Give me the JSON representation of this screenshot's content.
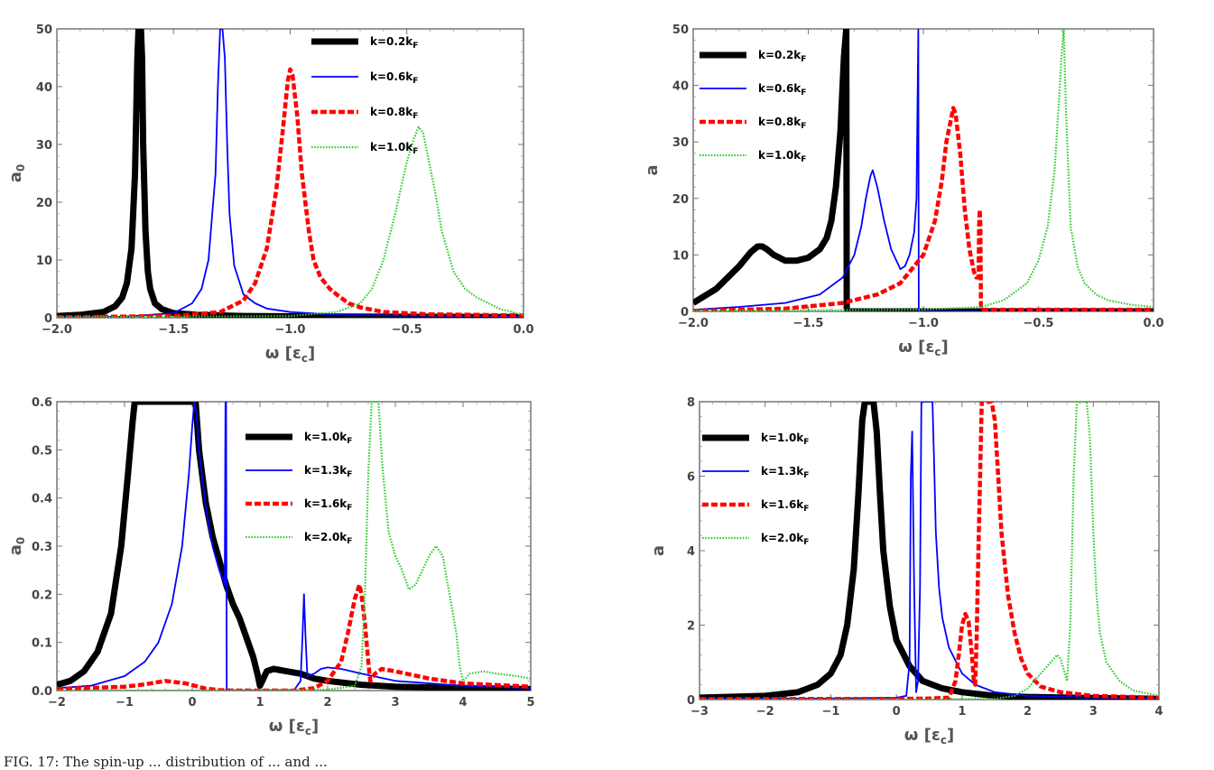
{
  "caption": "FIG. 17: The spin-up ... distribution of ... and ...",
  "chart_data": [
    {
      "type": "line",
      "xlabel": "ω [εc]",
      "ylabel": "a0",
      "xlim": [
        -2.0,
        0.0
      ],
      "ylim": [
        0,
        50
      ],
      "xticks": [
        "−2.0",
        "−1.5",
        "−1.0",
        "−0.5",
        "0.0"
      ],
      "xtick_values": [
        -2.0,
        -1.5,
        -1.0,
        -0.5,
        0.0
      ],
      "yticks": [
        "0",
        "10",
        "20",
        "30",
        "40",
        "50"
      ],
      "ytick_values": [
        0,
        10,
        20,
        30,
        40,
        50
      ],
      "legend_position": "top-right",
      "series": [
        {
          "name": "k=0.2kF",
          "color": "#000000",
          "style": "solid-thick",
          "x": [
            -2.0,
            -1.9,
            -1.8,
            -1.75,
            -1.72,
            -1.7,
            -1.68,
            -1.665,
            -1.655,
            -1.65,
            -1.645,
            -1.64,
            -1.635,
            -1.63,
            -1.62,
            -1.61,
            -1.6,
            -1.58,
            -1.55,
            -1.5,
            -1.4,
            -1.2,
            -0.8,
            0.0
          ],
          "y": [
            0.3,
            0.5,
            1.0,
            2.0,
            3.5,
            6,
            12,
            25,
            45,
            50,
            50,
            50,
            45,
            30,
            15,
            8,
            5,
            2.5,
            1.5,
            0.8,
            0.5,
            0.3,
            0.2,
            0.1
          ]
        },
        {
          "name": "k=0.6kF",
          "color": "#0000ff",
          "style": "solid",
          "x": [
            -2.0,
            -1.7,
            -1.5,
            -1.42,
            -1.38,
            -1.35,
            -1.32,
            -1.31,
            -1.3,
            -1.29,
            -1.28,
            -1.27,
            -1.26,
            -1.24,
            -1.2,
            -1.15,
            -1.1,
            -1.0,
            -0.8,
            -0.6,
            0.0
          ],
          "y": [
            0.1,
            0.2,
            0.8,
            2.5,
            5,
            10,
            25,
            40,
            50,
            50,
            45,
            30,
            18,
            9,
            4,
            2.5,
            1.6,
            1.0,
            0.5,
            0.4,
            0.2
          ]
        },
        {
          "name": "k=0.8kF",
          "color": "#ff0000",
          "style": "dashed-thick",
          "x": [
            -2.0,
            -1.5,
            -1.3,
            -1.2,
            -1.15,
            -1.1,
            -1.06,
            -1.03,
            -1.01,
            -1.0,
            -0.99,
            -0.97,
            -0.95,
            -0.92,
            -0.9,
            -0.87,
            -0.83,
            -0.8,
            -0.75,
            -0.7,
            -0.6,
            -0.4,
            0.0
          ],
          "y": [
            0.1,
            0.3,
            1.0,
            3,
            6,
            12,
            22,
            33,
            41,
            43,
            42,
            35,
            25,
            15,
            10,
            7,
            5,
            4,
            2.5,
            1.8,
            1.0,
            0.6,
            0.4
          ]
        },
        {
          "name": "k=1.0kF",
          "color": "#33cc33",
          "style": "dotted",
          "x": [
            -2.0,
            -1.0,
            -0.8,
            -0.7,
            -0.65,
            -0.6,
            -0.55,
            -0.5,
            -0.47,
            -0.45,
            -0.43,
            -0.41,
            -0.38,
            -0.35,
            -0.3,
            -0.25,
            -0.2,
            -0.15,
            -0.1,
            -0.05,
            0.0
          ],
          "y": [
            0.1,
            0.3,
            1.0,
            2.5,
            5,
            10,
            18,
            27,
            31,
            33,
            32,
            28,
            22,
            15,
            8,
            5,
            3.5,
            2.5,
            1.5,
            1.0,
            0.5
          ]
        }
      ]
    },
    {
      "type": "line",
      "xlabel": "ω [εc]",
      "ylabel": "a",
      "xlim": [
        -2.0,
        0.0
      ],
      "ylim": [
        0,
        50
      ],
      "xticks": [
        "−2.0",
        "−1.5",
        "−1.0",
        "−0.5",
        "0.0"
      ],
      "xtick_values": [
        -2.0,
        -1.5,
        -1.0,
        -0.5,
        0.0
      ],
      "yticks": [
        "0",
        "10",
        "20",
        "30",
        "40",
        "50"
      ],
      "ytick_values": [
        0,
        10,
        20,
        30,
        40,
        50
      ],
      "legend_position": "top-left",
      "series": [
        {
          "name": "k=0.2kF",
          "color": "#000000",
          "style": "solid-thick",
          "x": [
            -2.0,
            -1.9,
            -1.8,
            -1.75,
            -1.72,
            -1.7,
            -1.68,
            -1.65,
            -1.6,
            -1.55,
            -1.5,
            -1.45,
            -1.42,
            -1.4,
            -1.38,
            -1.36,
            -1.345,
            -1.335,
            -1.333,
            -1.332,
            -1.3,
            -1.0,
            -0.5,
            0.0
          ],
          "y": [
            1.5,
            4,
            8,
            10.5,
            11.5,
            11.5,
            11,
            10,
            9,
            9,
            9.5,
            11,
            13,
            16,
            22,
            32,
            45,
            50,
            0,
            0,
            0,
            0,
            0,
            0
          ]
        },
        {
          "name": "k=0.6kF",
          "color": "#0000ff",
          "style": "solid",
          "x": [
            -2.0,
            -1.8,
            -1.6,
            -1.45,
            -1.35,
            -1.3,
            -1.27,
            -1.25,
            -1.23,
            -1.22,
            -1.2,
            -1.17,
            -1.14,
            -1.1,
            -1.08,
            -1.06,
            -1.04,
            -1.03,
            -1.022,
            -1.02,
            -1.018,
            -0.8,
            0.0
          ],
          "y": [
            0.3,
            0.8,
            1.5,
            3,
            6,
            10,
            15,
            20,
            24,
            25,
            22,
            16,
            11,
            7.5,
            8,
            10,
            14,
            20,
            50,
            0,
            0,
            0,
            0
          ]
        },
        {
          "name": "k=0.8kF",
          "color": "#ff0000",
          "style": "dashed-thick",
          "x": [
            -2.0,
            -1.6,
            -1.35,
            -1.2,
            -1.1,
            -1.0,
            -0.95,
            -0.92,
            -0.9,
            -0.88,
            -0.87,
            -0.86,
            -0.84,
            -0.82,
            -0.8,
            -0.78,
            -0.77,
            -0.76,
            -0.758,
            -0.755,
            -0.752,
            -0.75,
            -0.748,
            -0.5,
            0.0
          ],
          "y": [
            0.1,
            0.5,
            1.5,
            3,
            5,
            10,
            16,
            23,
            30,
            34,
            36,
            35,
            28,
            18,
            11,
            7,
            6,
            6,
            15,
            18,
            15,
            0.5,
            0.3,
            0.3,
            0.3
          ]
        },
        {
          "name": "k=1.0kF",
          "color": "#33cc33",
          "style": "dotted",
          "x": [
            -2.0,
            -1.0,
            -0.75,
            -0.65,
            -0.55,
            -0.5,
            -0.46,
            -0.43,
            -0.41,
            -0.4,
            -0.39,
            -0.38,
            -0.36,
            -0.33,
            -0.3,
            -0.25,
            -0.2,
            -0.1,
            0.0
          ],
          "y": [
            0.1,
            0.3,
            0.8,
            2,
            5,
            9,
            15,
            25,
            38,
            45,
            50,
            35,
            15,
            8,
            5,
            3,
            2,
            1.2,
            0.8
          ]
        }
      ]
    },
    {
      "type": "line",
      "xlabel": "ω [εc]",
      "ylabel": "a0",
      "xlim": [
        -2,
        5
      ],
      "ylim": [
        0,
        0.6
      ],
      "xticks": [
        "−2",
        "−1",
        "0",
        "1",
        "2",
        "3",
        "4",
        "5"
      ],
      "xtick_values": [
        -2,
        -1,
        0,
        1,
        2,
        3,
        4,
        5
      ],
      "yticks": [
        "0.0",
        "0.1",
        "0.2",
        "0.3",
        "0.4",
        "0.5",
        "0.6"
      ],
      "ytick_values": [
        0,
        0.1,
        0.2,
        0.3,
        0.4,
        0.5,
        0.6
      ],
      "legend_position": "top-right",
      "series": [
        {
          "name": "k=1.0kF",
          "color": "#000000",
          "style": "solid-thick",
          "x": [
            -2.0,
            -1.8,
            -1.6,
            -1.4,
            -1.2,
            -1.05,
            -0.95,
            -0.88,
            -0.85,
            0.0,
            0.05,
            0.1,
            0.2,
            0.3,
            0.4,
            0.5,
            0.6,
            0.7,
            0.8,
            0.9,
            0.97,
            1.0,
            1.05,
            1.1,
            1.2,
            1.4,
            1.6,
            1.8,
            2.0,
            2.5,
            3.0,
            4.0,
            5.0
          ],
          "y": [
            0.012,
            0.02,
            0.04,
            0.08,
            0.16,
            0.3,
            0.45,
            0.56,
            0.6,
            0.6,
            0.6,
            0.5,
            0.39,
            0.32,
            0.27,
            0.22,
            0.18,
            0.15,
            0.11,
            0.07,
            0.03,
            0.01,
            0.025,
            0.04,
            0.045,
            0.04,
            0.035,
            0.025,
            0.02,
            0.012,
            0.008,
            0.005,
            0.003
          ]
        },
        {
          "name": "k=1.3kF",
          "color": "#0000ff",
          "style": "solid",
          "x": [
            -2.0,
            -1.5,
            -1.0,
            -0.7,
            -0.5,
            -0.3,
            -0.15,
            -0.05,
            0.0,
            0.03,
            0.06,
            0.1,
            0.2,
            0.3,
            0.4,
            0.48,
            0.49,
            0.5,
            0.51,
            0.8,
            1.2,
            1.5,
            1.6,
            1.63,
            1.65,
            1.67,
            1.7,
            1.8,
            1.9,
            2.0,
            2.2,
            2.5,
            3.0,
            4.0,
            5.0
          ],
          "y": [
            0.005,
            0.01,
            0.03,
            0.06,
            0.1,
            0.18,
            0.3,
            0.45,
            0.55,
            0.6,
            0.58,
            0.5,
            0.38,
            0.3,
            0.25,
            0.22,
            0.6,
            0.6,
            0.0,
            0.0,
            0.0,
            0.0,
            0.02,
            0.12,
            0.2,
            0.12,
            0.03,
            0.035,
            0.045,
            0.048,
            0.045,
            0.035,
            0.02,
            0.01,
            0.005
          ]
        },
        {
          "name": "k=1.6kF",
          "color": "#ff0000",
          "style": "dashed-thick",
          "x": [
            -2.0,
            -1.0,
            -0.7,
            -0.4,
            -0.1,
            0.2,
            0.4,
            0.6,
            1.0,
            1.5,
            1.8,
            2.0,
            2.2,
            2.3,
            2.4,
            2.47,
            2.5,
            2.55,
            2.6,
            2.63,
            2.7,
            2.8,
            3.0,
            3.5,
            4.0,
            5.0
          ],
          "y": [
            0.003,
            0.008,
            0.013,
            0.02,
            0.015,
            0.004,
            0.001,
            0.0,
            0.0,
            0.0,
            0.005,
            0.02,
            0.06,
            0.12,
            0.19,
            0.22,
            0.2,
            0.14,
            0.06,
            0.02,
            0.035,
            0.045,
            0.04,
            0.025,
            0.015,
            0.008
          ]
        },
        {
          "name": "k=2.0kF",
          "color": "#33cc33",
          "style": "dotted",
          "x": [
            -2.0,
            0.0,
            2.0,
            2.4,
            2.5,
            2.55,
            2.6,
            2.65,
            2.7,
            2.75,
            2.8,
            2.9,
            3.0,
            3.1,
            3.2,
            3.3,
            3.4,
            3.5,
            3.6,
            3.7,
            3.8,
            3.9,
            3.95,
            4.0,
            4.1,
            4.3,
            4.5,
            4.8,
            5.0
          ],
          "y": [
            0.0,
            0.0,
            0.002,
            0.01,
            0.05,
            0.2,
            0.45,
            0.6,
            0.6,
            0.6,
            0.48,
            0.33,
            0.28,
            0.25,
            0.21,
            0.22,
            0.25,
            0.28,
            0.3,
            0.28,
            0.2,
            0.12,
            0.05,
            0.02,
            0.035,
            0.04,
            0.035,
            0.03,
            0.025
          ]
        }
      ]
    },
    {
      "type": "line",
      "xlabel": "ω [εc]",
      "ylabel": "a",
      "xlim": [
        -3,
        4
      ],
      "ylim": [
        0,
        8
      ],
      "xticks": [
        "−3",
        "−2",
        "−1",
        "0",
        "1",
        "2",
        "3",
        "4"
      ],
      "xtick_values": [
        -3,
        -2,
        -1,
        0,
        1,
        2,
        3,
        4
      ],
      "yticks": [
        "0",
        "2",
        "4",
        "6",
        "8"
      ],
      "ytick_values": [
        0,
        2,
        4,
        6,
        8
      ],
      "legend_position": "top-left",
      "series": [
        {
          "name": "k=1.0kF",
          "color": "#000000",
          "style": "solid-thick",
          "x": [
            -3.0,
            -2.0,
            -1.5,
            -1.2,
            -1.0,
            -0.85,
            -0.75,
            -0.65,
            -0.58,
            -0.52,
            -0.48,
            -0.45,
            -0.35,
            -0.3,
            -0.25,
            -0.2,
            -0.1,
            0.0,
            0.2,
            0.4,
            0.7,
            1.0,
            1.5,
            2.0,
            3.0,
            4.0
          ],
          "y": [
            0.05,
            0.1,
            0.2,
            0.4,
            0.7,
            1.2,
            2,
            3.5,
            5.5,
            7.5,
            8,
            8,
            8,
            7.2,
            5.5,
            4,
            2.5,
            1.6,
            0.9,
            0.5,
            0.3,
            0.2,
            0.1,
            0.07,
            0.04,
            0.02
          ]
        },
        {
          "name": "k=1.3kF",
          "color": "#0000ff",
          "style": "solid",
          "x": [
            -3.0,
            -1.0,
            0.0,
            0.15,
            0.2,
            0.22,
            0.24,
            0.27,
            0.3,
            0.33,
            0.36,
            0.38,
            0.4,
            0.45,
            0.5,
            0.55,
            0.58,
            0.6,
            0.65,
            0.7,
            0.8,
            1.0,
            1.2,
            1.5,
            2.0,
            3.0,
            4.0
          ],
          "y": [
            0.02,
            0.03,
            0.05,
            0.1,
            1.0,
            6.0,
            7.2,
            3.0,
            0.2,
            0.5,
            3,
            8,
            8,
            8,
            8,
            8,
            6,
            4.5,
            3,
            2.2,
            1.4,
            0.7,
            0.4,
            0.2,
            0.1,
            0.05,
            0.03
          ]
        },
        {
          "name": "k=1.6kF",
          "color": "#ff0000",
          "style": "dashed-thick",
          "x": [
            -3.0,
            0.0,
            0.5,
            0.8,
            0.9,
            0.95,
            1.0,
            1.05,
            1.1,
            1.15,
            1.18,
            1.2,
            1.22,
            1.25,
            1.3,
            1.35,
            1.4,
            1.45,
            1.5,
            1.55,
            1.6,
            1.7,
            1.8,
            1.9,
            2.0,
            2.2,
            2.5,
            3.0,
            4.0
          ],
          "y": [
            0.02,
            0.02,
            0.03,
            0.05,
            0.5,
            1.2,
            2.0,
            2.3,
            2.1,
            1.2,
            0.5,
            0.4,
            1.5,
            4,
            8,
            8,
            8,
            8,
            7.5,
            6,
            4.5,
            2.8,
            1.8,
            1.1,
            0.7,
            0.35,
            0.2,
            0.1,
            0.05
          ]
        },
        {
          "name": "k=2.0kF",
          "color": "#33cc33",
          "style": "dotted",
          "x": [
            -3.0,
            0.0,
            1.5,
            1.8,
            2.0,
            2.2,
            2.35,
            2.45,
            2.5,
            2.55,
            2.6,
            2.65,
            2.7,
            2.75,
            2.8,
            2.85,
            2.9,
            2.95,
            3.0,
            3.05,
            3.1,
            3.2,
            3.4,
            3.6,
            4.0
          ],
          "y": [
            0.0,
            0.0,
            0.02,
            0.1,
            0.3,
            0.7,
            1.0,
            1.2,
            1.1,
            0.8,
            0.5,
            2,
            6,
            8,
            8,
            8,
            8,
            7,
            4.5,
            2.8,
            1.8,
            1.0,
            0.5,
            0.25,
            0.1
          ]
        }
      ]
    }
  ]
}
